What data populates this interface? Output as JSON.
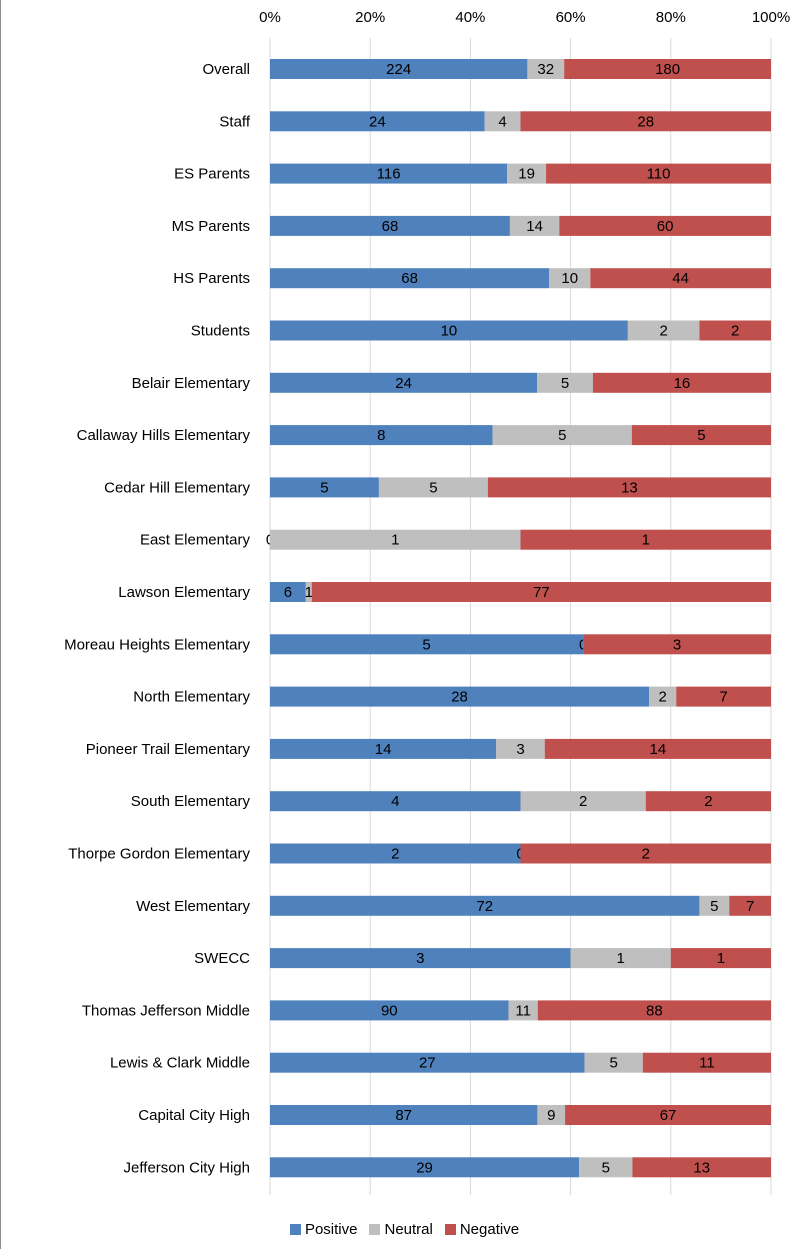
{
  "chart_data": {
    "type": "bar",
    "orientation": "horizontal",
    "stacking": "percent",
    "title": "",
    "xlabel": "",
    "ylabel": "",
    "xlim": [
      0,
      100
    ],
    "x_ticks": [
      "0%",
      "20%",
      "40%",
      "60%",
      "80%",
      "100%"
    ],
    "grid": "vertical",
    "legend_position": "bottom",
    "categories": [
      "Overall",
      "Staff",
      "ES Parents",
      "MS Parents",
      "HS Parents",
      "Students",
      "Belair Elementary",
      "Callaway Hills Elementary",
      "Cedar Hill Elementary",
      "East Elementary",
      "Lawson Elementary",
      "Moreau Heights Elementary",
      "North Elementary",
      "Pioneer Trail Elementary",
      "South Elementary",
      "Thorpe Gordon Elementary",
      "West Elementary",
      "SWECC",
      "Thomas Jefferson Middle",
      "Lewis & Clark Middle",
      "Capital City High",
      "Jefferson City High"
    ],
    "series": [
      {
        "name": "Positive",
        "color": "#4f81bd",
        "values": [
          224,
          24,
          116,
          68,
          68,
          10,
          24,
          8,
          5,
          0,
          6,
          5,
          28,
          14,
          4,
          2,
          72,
          3,
          90,
          27,
          87,
          29
        ]
      },
      {
        "name": "Neutral",
        "color": "#bfbfbf",
        "values": [
          32,
          4,
          19,
          14,
          10,
          2,
          5,
          5,
          5,
          1,
          1,
          0,
          2,
          3,
          2,
          0,
          5,
          1,
          11,
          5,
          9,
          5
        ]
      },
      {
        "name": "Negative",
        "color": "#c0504d",
        "values": [
          180,
          28,
          110,
          60,
          44,
          2,
          16,
          5,
          13,
          1,
          77,
          3,
          7,
          14,
          2,
          2,
          7,
          1,
          88,
          11,
          67,
          13
        ]
      }
    ]
  }
}
